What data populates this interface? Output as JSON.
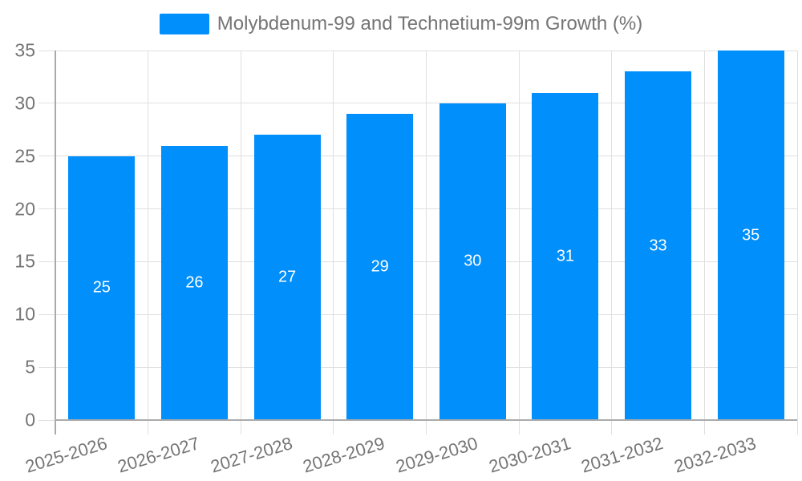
{
  "chart_data": {
    "type": "bar",
    "title": "Molybdenum-99 and Technetium-99m Growth (%)",
    "series_name": "Molybdenum-99 and Technetium-99m Growth (%)",
    "categories": [
      "2025-2026",
      "2026-2027",
      "2027-2028",
      "2028-2029",
      "2029-2030",
      "2030-2031",
      "2031-2032",
      "2032-2033"
    ],
    "values": [
      25,
      26,
      27,
      29,
      30,
      31,
      33,
      35
    ],
    "value_labels": [
      "25",
      "26",
      "27",
      "29",
      "30",
      "31",
      "33",
      "35"
    ],
    "xlabel": "",
    "ylabel": "",
    "ylim": [
      0,
      35
    ],
    "yticks": [
      0,
      5,
      10,
      15,
      20,
      25,
      30,
      35
    ],
    "grid": true,
    "legend_position": "top-center",
    "value_labels_position": "center-of-bar",
    "colors": {
      "bar": "#008FFB",
      "grid": "#e0e0e0",
      "axis": "#aaaaaa",
      "baseline": "#ababab",
      "tick_label": "#757575",
      "legend_text": "#757575",
      "value_label": "#ffffff",
      "background": "#ffffff"
    }
  }
}
